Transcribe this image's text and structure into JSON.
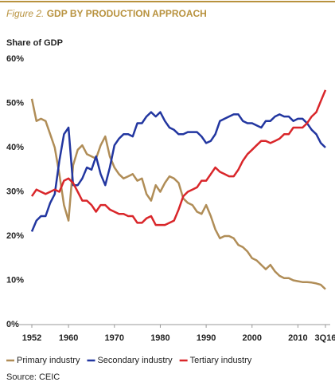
{
  "chart_data": {
    "type": "line",
    "figure_label": "Figure 2.",
    "title": "GDP BY PRODUCTION APPROACH",
    "y_label": "Share of GDP",
    "source": "Source: CEIC",
    "x": [
      1952,
      1953,
      1954,
      1955,
      1956,
      1957,
      1958,
      1959,
      1960,
      1961,
      1962,
      1963,
      1964,
      1965,
      1966,
      1967,
      1968,
      1969,
      1970,
      1971,
      1972,
      1973,
      1974,
      1975,
      1976,
      1977,
      1978,
      1979,
      1980,
      1981,
      1982,
      1983,
      1984,
      1985,
      1986,
      1987,
      1988,
      1989,
      1990,
      1991,
      1992,
      1993,
      1994,
      1995,
      1996,
      1997,
      1998,
      1999,
      2000,
      2001,
      2002,
      2003,
      2004,
      2005,
      2006,
      2007,
      2008,
      2009,
      2010,
      2011,
      2012,
      2013,
      2014,
      2015,
      2016
    ],
    "series": [
      {
        "name": "Primary industry",
        "color": "#b08d57",
        "values": [
          51,
          46,
          46.5,
          46,
          43,
          40,
          34,
          27,
          23.5,
          36,
          39.5,
          40.5,
          38.5,
          38,
          37.5,
          40.5,
          42.5,
          38,
          35.5,
          34,
          33,
          33.5,
          34,
          32.5,
          33,
          29.5,
          28,
          31.5,
          30,
          32,
          33.5,
          33,
          32,
          28.5,
          27.5,
          27,
          25.5,
          25,
          27,
          24.5,
          21.5,
          19.5,
          20,
          20,
          19.5,
          18,
          17.5,
          16.5,
          15,
          14.5,
          13.5,
          12.5,
          13.5,
          12,
          11,
          10.5,
          10.5,
          10,
          9.8,
          9.6,
          9.6,
          9.5,
          9.3,
          9,
          8
        ]
      },
      {
        "name": "Secondary industry",
        "color": "#2236a0",
        "values": [
          21,
          23.5,
          24.5,
          24.5,
          27.5,
          29.5,
          37,
          43,
          44.5,
          31.5,
          31.5,
          33,
          35.5,
          35,
          38,
          34,
          31.5,
          35.5,
          40.5,
          42,
          43,
          43,
          42.5,
          45.5,
          45.5,
          47,
          48,
          47,
          48,
          46,
          44.5,
          44,
          43,
          43,
          43.5,
          43.5,
          43.5,
          42.5,
          41,
          41.5,
          43,
          46,
          46.5,
          47,
          47.5,
          47.5,
          46,
          45.5,
          45.5,
          45,
          44.5,
          46,
          46,
          47,
          47.5,
          47,
          47,
          46,
          46.5,
          46.5,
          45.5,
          44,
          43,
          41,
          40
        ]
      },
      {
        "name": "Tertiary industry",
        "color": "#d9262a",
        "values": [
          29,
          30.5,
          30,
          29.5,
          30,
          30.5,
          30,
          32.5,
          33,
          32,
          30,
          28,
          28,
          27,
          25.5,
          27,
          27,
          26,
          25.5,
          25,
          25,
          24.5,
          24.5,
          23,
          23,
          24,
          24.5,
          22.5,
          22.5,
          22.5,
          23,
          23.5,
          26,
          29,
          30,
          30.5,
          31,
          32.5,
          32.5,
          34,
          35.5,
          34.5,
          34,
          33.5,
          33.5,
          35,
          37,
          38.5,
          39.5,
          40.5,
          41.5,
          41.5,
          41,
          41.5,
          42,
          43,
          43,
          44.5,
          44.5,
          44.5,
          45.5,
          47,
          48,
          50.5,
          53
        ]
      }
    ],
    "xlim": [
      1952,
      2016
    ],
    "xticks": [
      1952,
      1960,
      1970,
      1980,
      1990,
      2000,
      2010,
      {
        "value": 2016,
        "label": "3Q16"
      }
    ],
    "ylim": [
      0,
      60
    ],
    "yticks": [
      {
        "value": 0,
        "label": "0%"
      },
      {
        "value": 10,
        "label": "10%"
      },
      {
        "value": 20,
        "label": "20%"
      },
      {
        "value": 30,
        "label": "30%"
      },
      {
        "value": 40,
        "label": "40%"
      },
      {
        "value": 50,
        "label": "50%"
      },
      {
        "value": 60,
        "label": "60%"
      }
    ],
    "grid": false
  }
}
